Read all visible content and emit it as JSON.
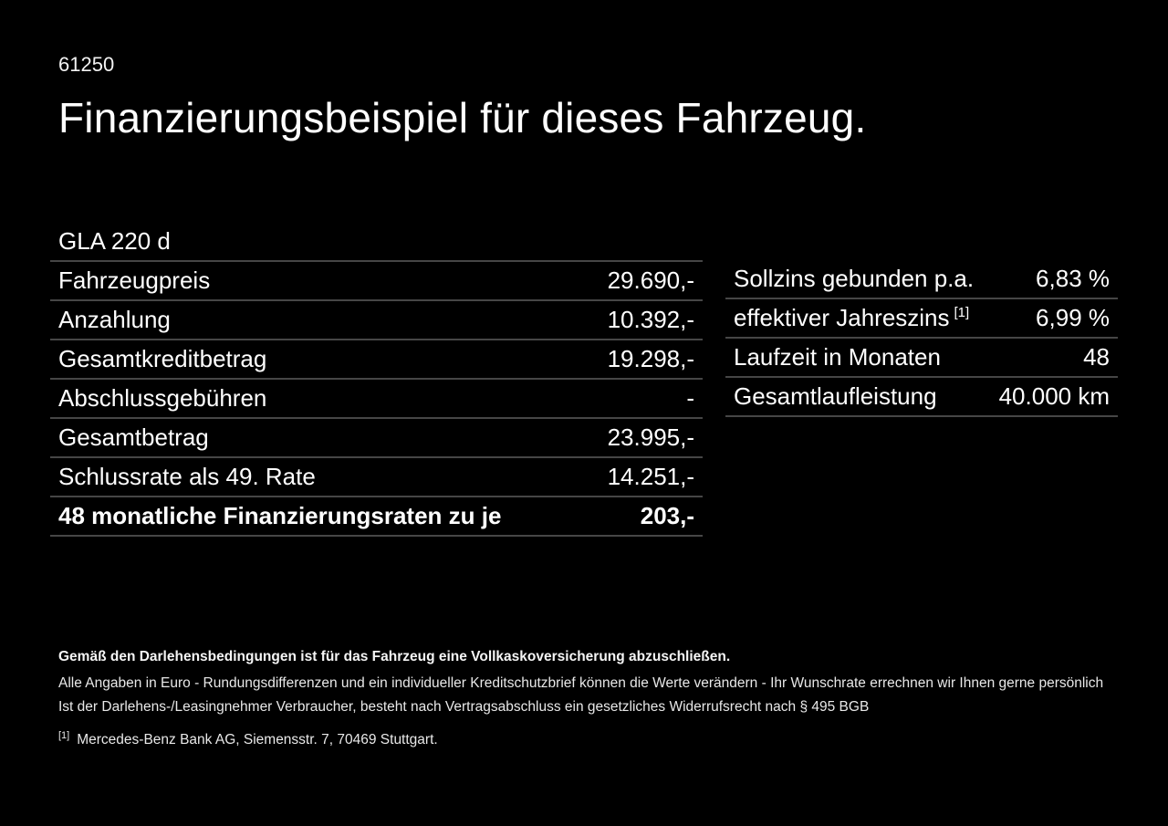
{
  "page": {
    "background": "#000000",
    "text_color": "#ffffff",
    "divider_color": "#464646"
  },
  "doc_number": "61250",
  "title": "Finanzierungsbeispiel für dieses Fahrzeug.",
  "vehicle_model": "GLA 220 d",
  "left_table": {
    "rows": [
      {
        "label": "Fahrzeugpreis",
        "value": "29.690,-"
      },
      {
        "label": "Anzahlung",
        "value": "10.392,-"
      },
      {
        "label": "Gesamtkreditbetrag",
        "value": "19.298,-"
      },
      {
        "label": "Abschlussgebühren",
        "value": "-"
      },
      {
        "label": "Gesamtbetrag",
        "value": "23.995,-"
      },
      {
        "label": "Schlussrate als 49. Rate",
        "value": "14.251,-"
      },
      {
        "label": "48 monatliche Finanzierungsraten zu je",
        "value": "203,-"
      }
    ]
  },
  "right_table": {
    "rows": [
      {
        "label": "Sollzins gebunden p.a.",
        "value": "6,83 %"
      },
      {
        "label": "effektiver Jahreszins",
        "sup": "[1]",
        "value": "6,99 %"
      },
      {
        "label": "Laufzeit in Monaten",
        "value": "48"
      },
      {
        "label": "Gesamtlaufleistung",
        "value": "40.000 km"
      }
    ]
  },
  "footer": {
    "insurance_note": "Gemäß den Darlehensbedingungen ist für das Fahrzeug eine Vollkaskoversicherung abzuschließen.",
    "disclaimer_line1": "Alle Angaben in Euro - Rundungsdifferenzen und ein individueller Kreditschutzbrief können die Werte verändern - Ihr Wunschrate errechnen wir Ihnen gerne persönlich",
    "disclaimer_line2": "Ist der Darlehens-/Leasingnehmer Verbraucher, besteht nach Vertragsabschluss ein gesetzliches Widerrufsrecht nach § 495 BGB",
    "footnote_marker": "[1]",
    "footnote_text": "Mercedes-Benz Bank AG, Siemensstr. 7, 70469 Stuttgart."
  }
}
